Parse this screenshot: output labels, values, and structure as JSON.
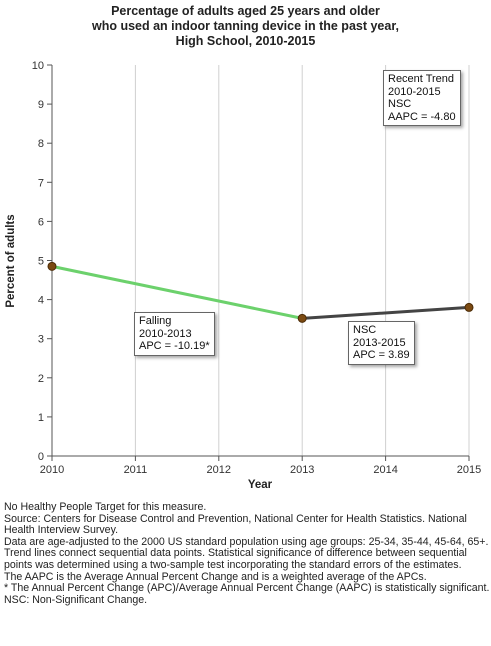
{
  "chart_data": {
    "type": "line",
    "title": [
      "Percentage of adults aged 25 years and older",
      "who used an indoor tanning device in the past year,",
      "High School,  2010-2015"
    ],
    "xlabel": "Year",
    "ylabel": "Percent of adults",
    "xlim": [
      2010,
      2015
    ],
    "ylim": [
      0,
      10
    ],
    "x_ticks": [
      "2010",
      "2011",
      "2012",
      "2013",
      "2014",
      "2015"
    ],
    "y_ticks": [
      "0",
      "1",
      "2",
      "3",
      "4",
      "5",
      "6",
      "7",
      "8",
      "9",
      "10"
    ],
    "grid": "vertical",
    "points": [
      {
        "x": 2010,
        "y": 4.85
      },
      {
        "x": 2013,
        "y": 3.52
      },
      {
        "x": 2015,
        "y": 3.8
      }
    ],
    "segments": [
      {
        "from": 2010,
        "to": 2013,
        "color": "#6cd16c"
      },
      {
        "from": 2013,
        "to": 2015,
        "color": "#444444"
      }
    ],
    "annotations": {
      "recent_trend": [
        "Recent Trend",
        "2010-2015",
        "NSC",
        "AAPC = -4.80"
      ],
      "segment1": [
        "Falling",
        "2010-2013",
        "APC = -10.19*"
      ],
      "segment2": [
        "NSC",
        "2013-2015",
        "APC =  3.89"
      ]
    },
    "colors": {
      "point_fill": "#7b4a12",
      "point_stroke": "#4a2a05",
      "grid": "#d0d0d0",
      "axis": "#555555"
    }
  },
  "notes": [
    "No Healthy People Target for this measure.",
    "Source: Centers for Disease Control and Prevention, National Center for Health Statistics. National Health Interview Survey.",
    "Data are age-adjusted to the 2000 US standard population using age groups: 25-34, 35-44, 45-64, 65+.",
    "Trend lines connect sequential data points. Statistical significance of difference between sequential points was determined using a two-sample test incorporating the standard errors of the estimates.",
    "The AAPC is the Average Annual Percent Change and is a weighted average of the APCs.",
    "* The Annual Percent Change (APC)/Average Annual Percent Change (AAPC) is statistically significant.",
    "NSC: Non-Significant Change."
  ]
}
